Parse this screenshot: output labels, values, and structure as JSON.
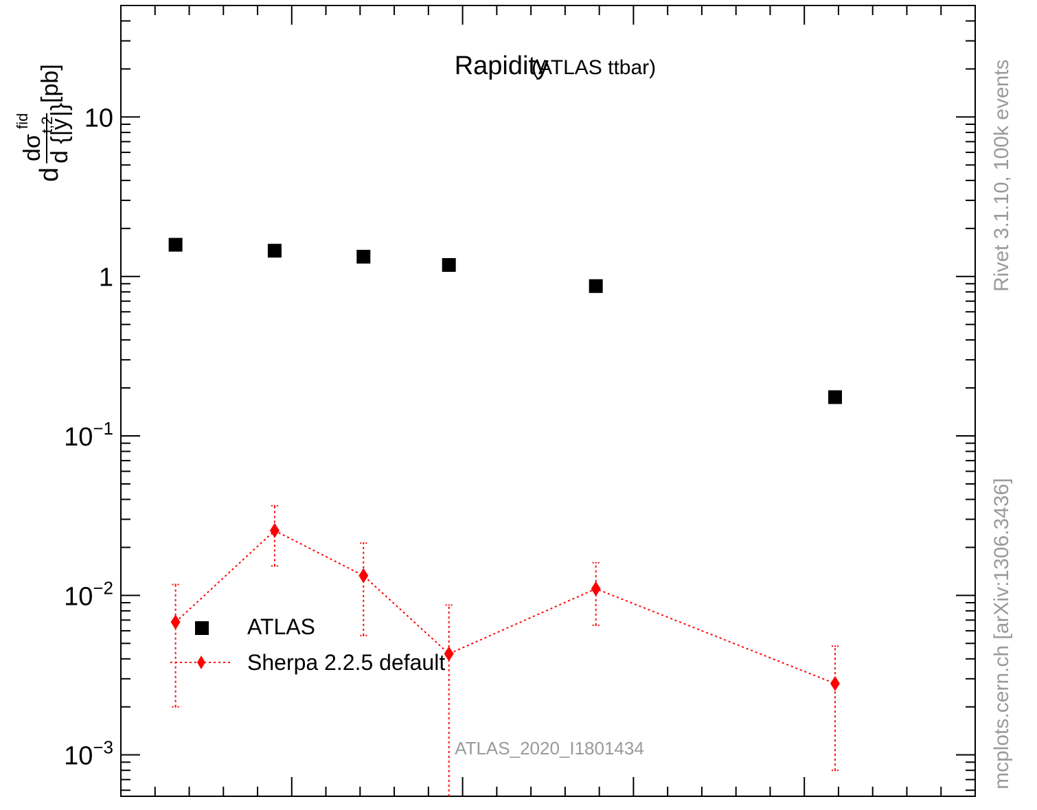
{
  "chart_data": {
    "type": "scatter",
    "title": "Rapidity",
    "subtitle": "(ATLAS ttbar)",
    "ylabel": {
      "d": "d",
      "numerator": "dσ",
      "numerator_sup": "fid",
      "denominator": "d {|y",
      "denominator_sup": "t,2",
      "denominator_close": "|}",
      "unit": "[pb]"
    },
    "yscale": "log",
    "ylim": [
      0.00055,
      50
    ],
    "xlim": [
      0,
      2.5
    ],
    "y_tick_labels": [
      {
        "value": 10,
        "base": "10",
        "exp": ""
      },
      {
        "value": 1,
        "base": "1",
        "exp": ""
      },
      {
        "value": 0.1,
        "base": "10",
        "exp": "−1"
      },
      {
        "value": 0.01,
        "base": "10",
        "exp": "−2"
      },
      {
        "value": 0.001,
        "base": "10",
        "exp": "−3"
      }
    ],
    "series": [
      {
        "name": "ATLAS",
        "color": "#000000",
        "marker": "square",
        "x": [
          0.16,
          0.45,
          0.71,
          0.96,
          1.39,
          2.09
        ],
        "y": [
          1.58,
          1.45,
          1.33,
          1.18,
          0.87,
          0.175
        ]
      },
      {
        "name": "Sherpa 2.2.5 default",
        "color": "#ff0000",
        "marker": "diamond",
        "line": "dotted",
        "x": [
          0.16,
          0.45,
          0.71,
          0.96,
          1.39,
          2.09
        ],
        "y": [
          0.0068,
          0.0255,
          0.0133,
          0.0043,
          0.011,
          0.0028
        ],
        "y_low": [
          0.002,
          0.0153,
          0.0056,
          0.00055,
          0.0065,
          0.0008
        ],
        "y_high": [
          0.0117,
          0.0365,
          0.0213,
          0.0087,
          0.016,
          0.0048
        ]
      }
    ],
    "legend": {
      "position": "bottom-left",
      "labels": [
        "ATLAS",
        "Sherpa 2.2.5 default"
      ]
    },
    "watermark": "ATLAS_2020_I1801434"
  },
  "side_text": {
    "right_top": "Rivet 3.1.10,  100k events",
    "right_bottom": "mcplots.cern.ch [arXiv:1306.3436]"
  }
}
